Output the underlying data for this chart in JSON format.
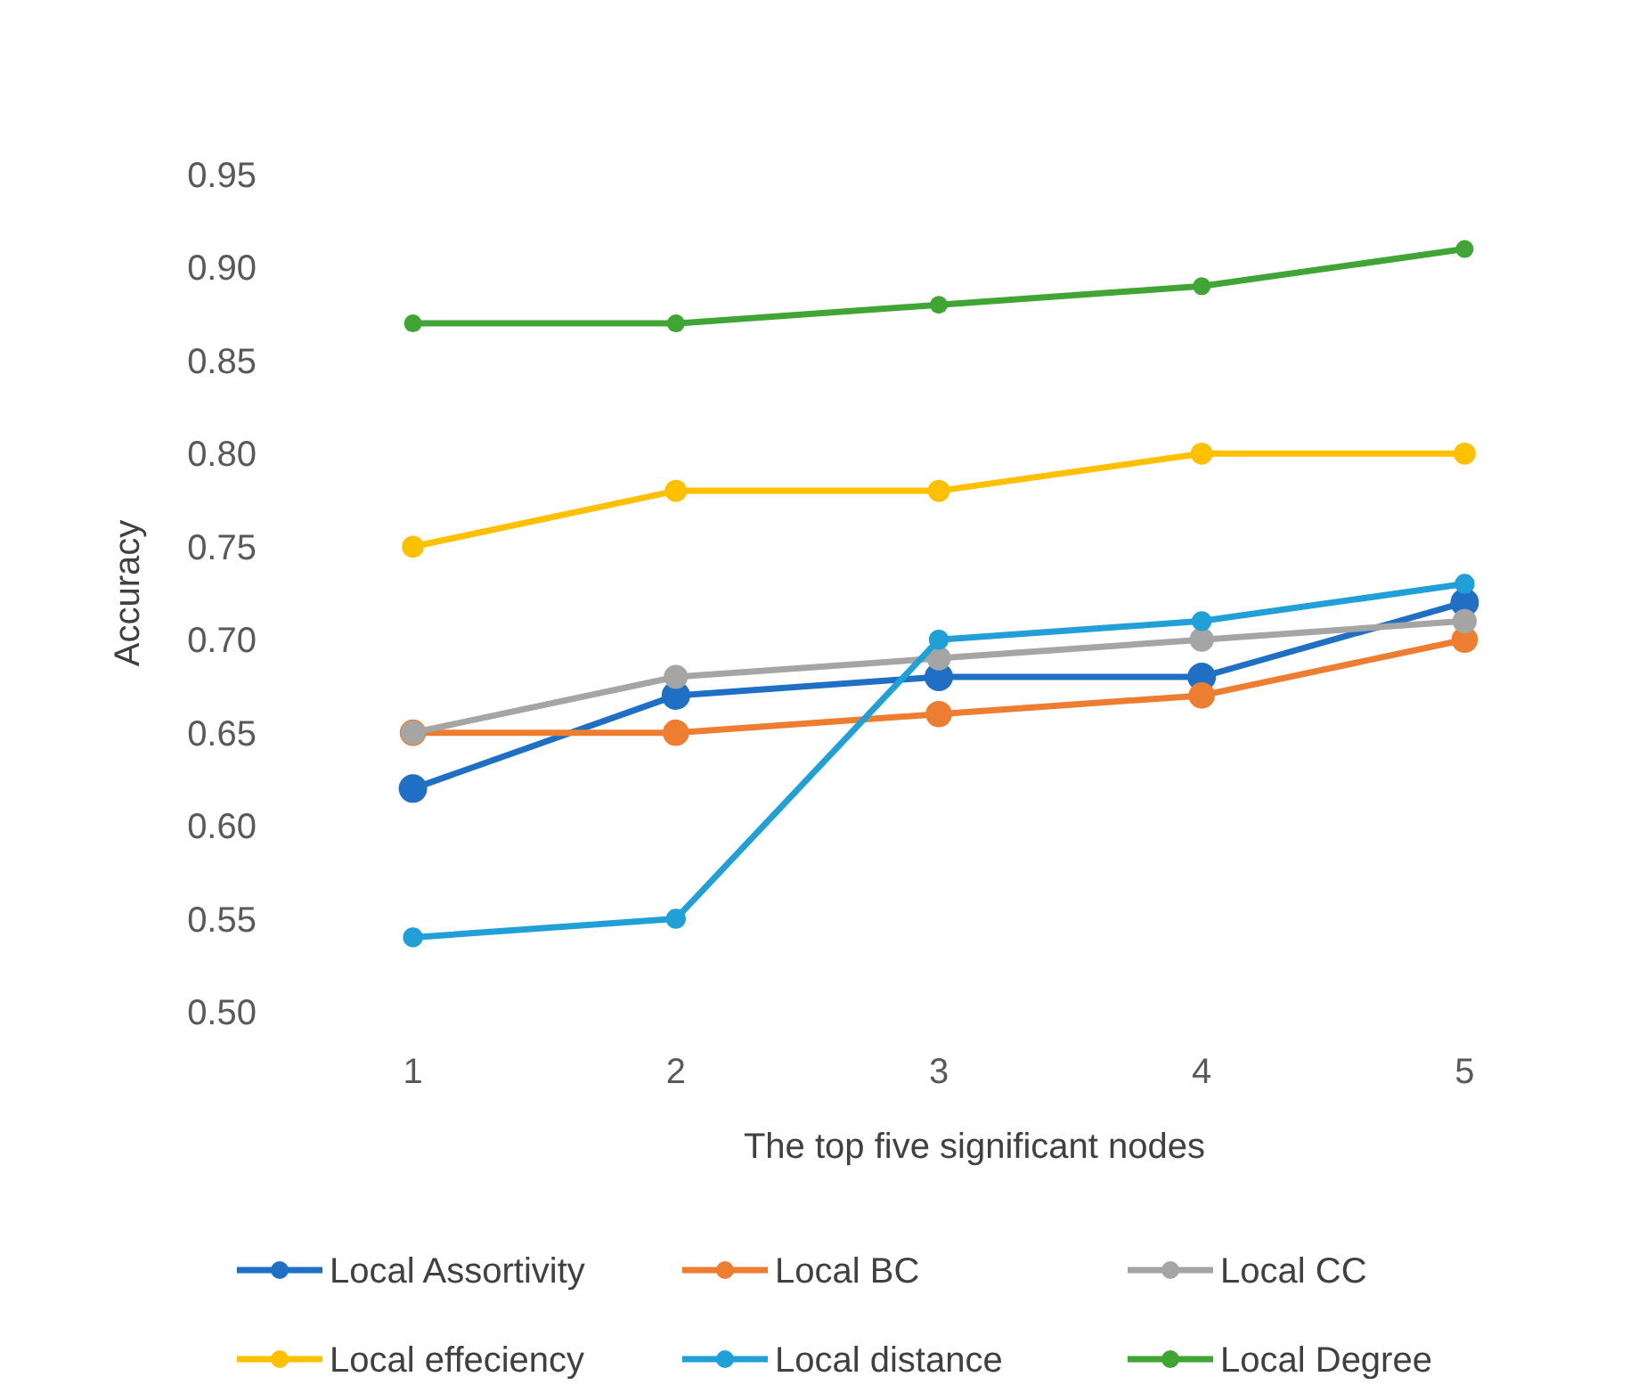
{
  "chart_data": {
    "type": "line",
    "xlabel": "The top five significant nodes",
    "ylabel": "Accuracy",
    "categories": [
      "1",
      "2",
      "3",
      "4",
      "5"
    ],
    "series": [
      {
        "name": "Local Assortivity",
        "color": "#1f6fc5",
        "values": [
          0.62,
          0.67,
          0.68,
          0.68,
          0.72
        ]
      },
      {
        "name": "Local BC",
        "color": "#ed7d31",
        "values": [
          0.65,
          0.65,
          0.66,
          0.67,
          0.7
        ]
      },
      {
        "name": "Local CC",
        "color": "#a5a5a5",
        "values": [
          0.65,
          0.68,
          0.69,
          0.7,
          0.71
        ]
      },
      {
        "name": "Local effeciency",
        "color": "#ffc000",
        "values": [
          0.75,
          0.78,
          0.78,
          0.8,
          0.8
        ]
      },
      {
        "name": "Local distance",
        "color": "#21a0d8",
        "values": [
          0.54,
          0.55,
          0.7,
          0.71,
          0.73
        ]
      },
      {
        "name": "Local Degree",
        "color": "#3fa535",
        "values": [
          0.87,
          0.87,
          0.88,
          0.89,
          0.91
        ]
      }
    ],
    "ylim": [
      0.5,
      0.95
    ],
    "yticks": [
      {
        "value": 0.5,
        "label": "0.50"
      },
      {
        "value": 0.55,
        "label": "0.55"
      },
      {
        "value": 0.6,
        "label": "0.60"
      },
      {
        "value": 0.65,
        "label": "0.65"
      },
      {
        "value": 0.7,
        "label": "0.70"
      },
      {
        "value": 0.75,
        "label": "0.75"
      },
      {
        "value": 0.8,
        "label": "0.80"
      },
      {
        "value": 0.85,
        "label": "0.85"
      },
      {
        "value": 0.9,
        "label": "0.90"
      },
      {
        "value": 0.95,
        "label": "0.95"
      }
    ],
    "grid": false,
    "legend": "bottom",
    "marker": "circle",
    "line_style": "solid"
  }
}
